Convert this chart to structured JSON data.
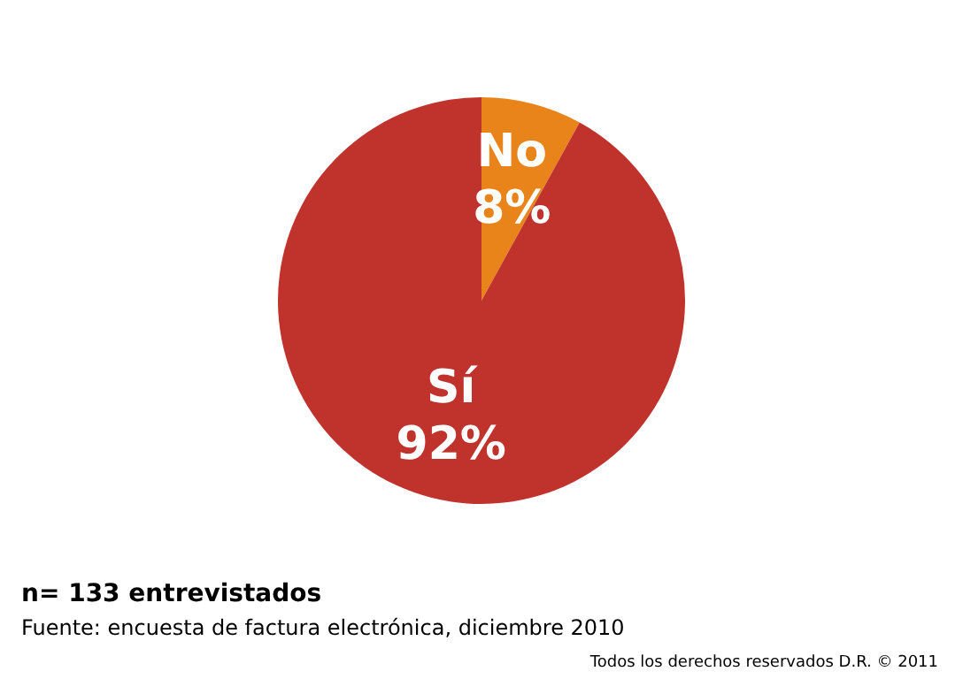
{
  "chart_data": {
    "type": "pie",
    "categories": [
      "No",
      "Sí"
    ],
    "values": [
      8,
      92
    ],
    "colors": [
      "#e8841a",
      "#c0322c"
    ],
    "value_labels": [
      "8%",
      "92%"
    ],
    "legend": false,
    "annotations": [
      "n= 133 entrevistados",
      "Fuente: encuesta de factura electrónica, diciembre 2010",
      "Todos los derechos reservados D.R. © 2011"
    ]
  }
}
